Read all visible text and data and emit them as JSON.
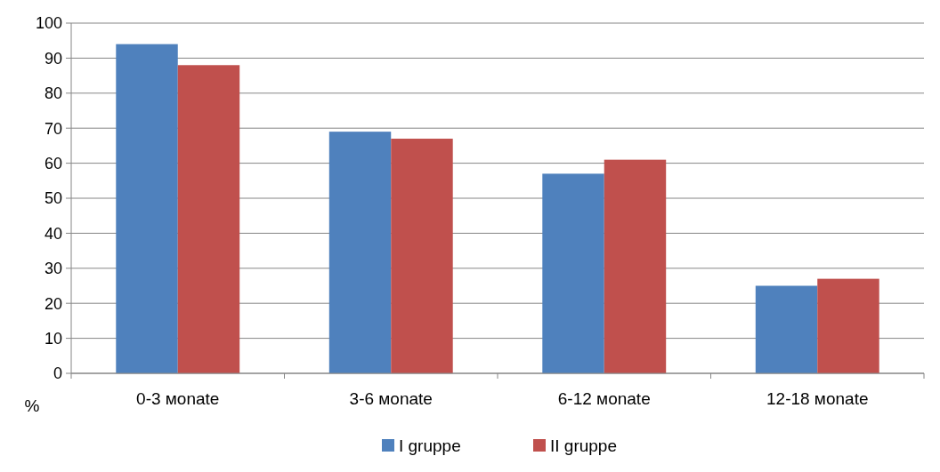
{
  "chart_data": {
    "type": "bar",
    "ylabel": "%",
    "categories": [
      "0-3 мonate",
      "3-6 мonate",
      "6-12 мonate",
      "12-18 мonate"
    ],
    "series": [
      {
        "name": "I gruppe",
        "color": "#4f81bd",
        "values": [
          94,
          69,
          57,
          25
        ]
      },
      {
        "name": "II gruppe",
        "color": "#c0504d",
        "values": [
          88,
          67,
          61,
          27
        ]
      }
    ],
    "ylim": [
      0,
      100
    ],
    "yticks": [
      0,
      10,
      20,
      30,
      40,
      50,
      60,
      70,
      80,
      90,
      100
    ],
    "grid": "y",
    "legend": "bottom"
  }
}
